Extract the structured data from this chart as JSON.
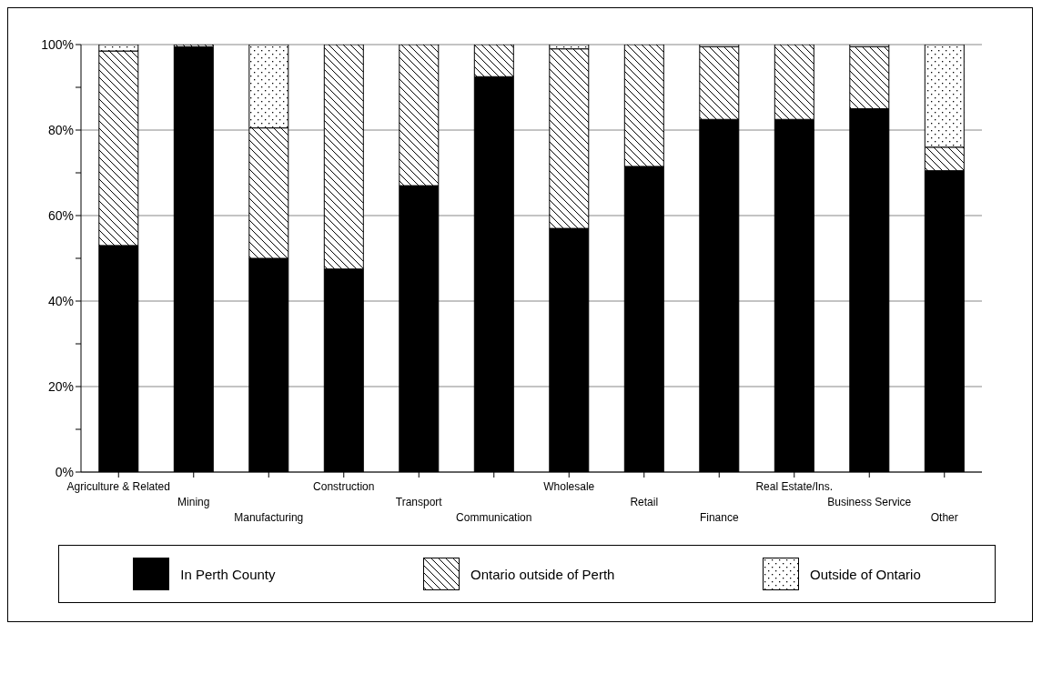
{
  "chart_data": {
    "type": "bar",
    "stacked": true,
    "categories": [
      "Agriculture & Related",
      "Mining",
      "Manufacturing",
      "Construction",
      "Transport",
      "Communication",
      "Wholesale",
      "Retail",
      "Finance",
      "Real Estate/Ins.",
      "Business Service",
      "Other"
    ],
    "series": [
      {
        "name": "In Perth County",
        "color": "#000000",
        "values": [
          53,
          99.5,
          50,
          47.5,
          67,
          92.5,
          57,
          71.5,
          82.5,
          82.5,
          85,
          70.5
        ]
      },
      {
        "name": "Ontario outside of Perth",
        "color": "#000000",
        "values": [
          45.5,
          0.5,
          30.5,
          52.5,
          33,
          7.5,
          42,
          28.5,
          17,
          17.5,
          14.5,
          5.5
        ]
      },
      {
        "name": "Outside of Ontario",
        "color": "#000000",
        "values": [
          1.5,
          0,
          19.5,
          0,
          0,
          0,
          1,
          0,
          0.5,
          0,
          0.5,
          24
        ]
      }
    ],
    "ylim": [
      0,
      100
    ],
    "yticks": [
      {
        "value": 0,
        "label": "0%"
      },
      {
        "value": 10,
        "label": null
      },
      {
        "value": 20,
        "label": "20%"
      },
      {
        "value": 30,
        "label": null
      },
      {
        "value": 40,
        "label": "40%"
      },
      {
        "value": 50,
        "label": null
      },
      {
        "value": 60,
        "label": "60%"
      },
      {
        "value": 70,
        "label": null
      },
      {
        "value": 80,
        "label": "80%"
      },
      {
        "value": 90,
        "label": null
      },
      {
        "value": 100,
        "label": "100%"
      }
    ],
    "grid": "y",
    "legend": "bottom"
  }
}
